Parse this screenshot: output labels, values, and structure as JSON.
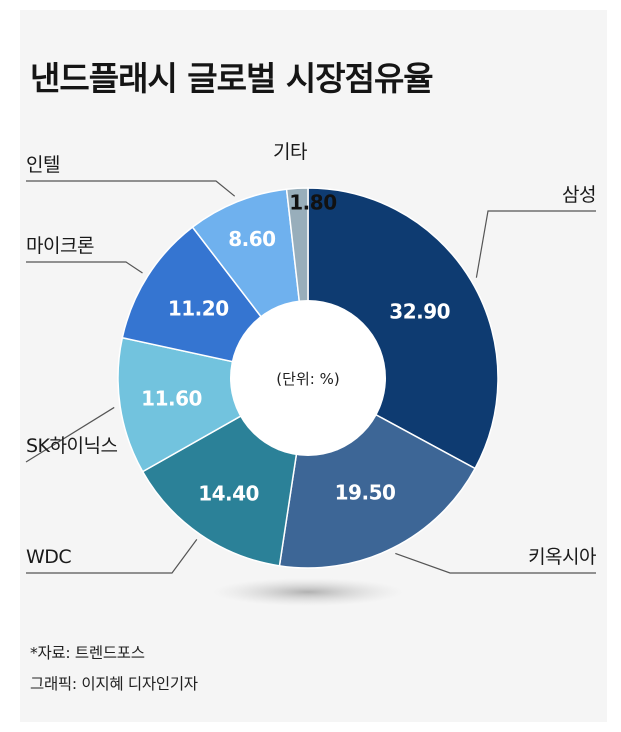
{
  "chart_data": {
    "type": "pie",
    "title": "낸드플래시 글로벌 시장점유율",
    "unit_note": "(단위: %)",
    "categories": [
      "삼성",
      "키옥시아",
      "WDC",
      "SK하이닉스",
      "마이크론",
      "인텔",
      "기타"
    ],
    "values": [
      32.9,
      19.5,
      14.4,
      11.6,
      11.2,
      8.6,
      1.8
    ],
    "value_labels": [
      "32.90",
      "19.50",
      "14.40",
      "11.60",
      "11.20",
      "8.60",
      "1.80"
    ],
    "colors": [
      "#0e3b71",
      "#3d6696",
      "#2b8198",
      "#72c3de",
      "#3575d1",
      "#6fb1ee",
      "#98aebb"
    ]
  },
  "footer": {
    "source": "*자료: 트렌드포스",
    "credit": "그래픽: 이지혜 디자인기자"
  }
}
